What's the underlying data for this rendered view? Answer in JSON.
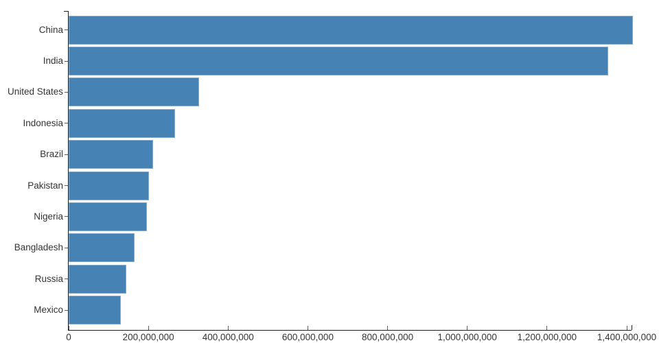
{
  "chart_data": {
    "type": "bar",
    "orientation": "horizontal",
    "title": "",
    "xlabel": "",
    "ylabel": "",
    "categories": [
      "China",
      "India",
      "United States",
      "Indonesia",
      "Brazil",
      "Pakistan",
      "Nigeria",
      "Bangladesh",
      "Russia",
      "Mexico"
    ],
    "values": [
      1415000000,
      1354000000,
      327000000,
      267000000,
      211000000,
      201000000,
      196000000,
      166000000,
      144000000,
      131000000
    ],
    "xlim": [
      0,
      1400000000
    ],
    "x_ticks": [
      0,
      200000000,
      400000000,
      600000000,
      800000000,
      1000000000,
      1200000000,
      1400000000
    ],
    "x_tick_labels": [
      "0",
      "200,000,000",
      "400,000,000",
      "600,000,000",
      "800,000,000",
      "1,000,000,000",
      "1,200,000,000",
      "1,400,000,000"
    ],
    "grid": false,
    "legend": null,
    "colors": {
      "bar": "#4682b4",
      "axis": "#1f1f1f",
      "tick": "#5c5c5c",
      "text": "#333333",
      "background": "#ffffff"
    }
  }
}
